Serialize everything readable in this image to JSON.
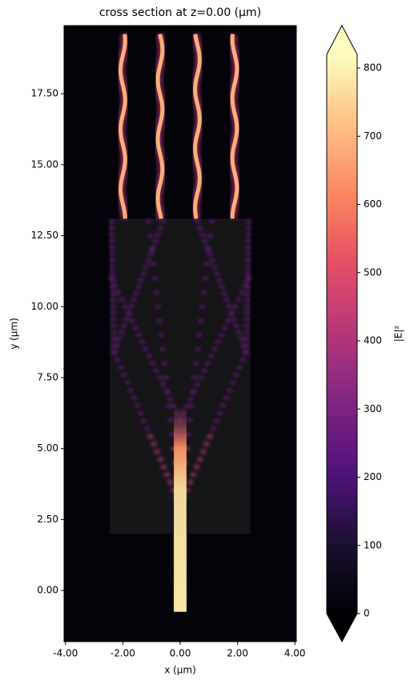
{
  "chart_data": {
    "type": "heatmap",
    "title": "cross section at z=0.00 (μm)",
    "x_label": "x (μm)",
    "y_label": "y (μm)",
    "xlim": [
      -4.05,
      4.05
    ],
    "ylim": [
      -1.8,
      19.9
    ],
    "xticks": [
      {
        "value": -4,
        "label": "-4.00"
      },
      {
        "value": -2,
        "label": "-2.00"
      },
      {
        "value": 0,
        "label": "0.00"
      },
      {
        "value": 2,
        "label": "2.00"
      },
      {
        "value": 4,
        "label": "4.00"
      }
    ],
    "yticks": [
      {
        "value": 0,
        "label": "0.00"
      },
      {
        "value": 2.5,
        "label": "2.50"
      },
      {
        "value": 5,
        "label": "5.00"
      },
      {
        "value": 7.5,
        "label": "7.50"
      },
      {
        "value": 10,
        "label": "10.00"
      },
      {
        "value": 12.5,
        "label": "12.50"
      },
      {
        "value": 15,
        "label": "15.00"
      },
      {
        "value": 17.5,
        "label": "17.50"
      }
    ],
    "colorbar": {
      "label": "|E|²",
      "colormap": "magma",
      "lim": [
        0,
        820
      ],
      "ticks": [
        0,
        100,
        200,
        300,
        400,
        500,
        600,
        700,
        800
      ]
    }
  }
}
